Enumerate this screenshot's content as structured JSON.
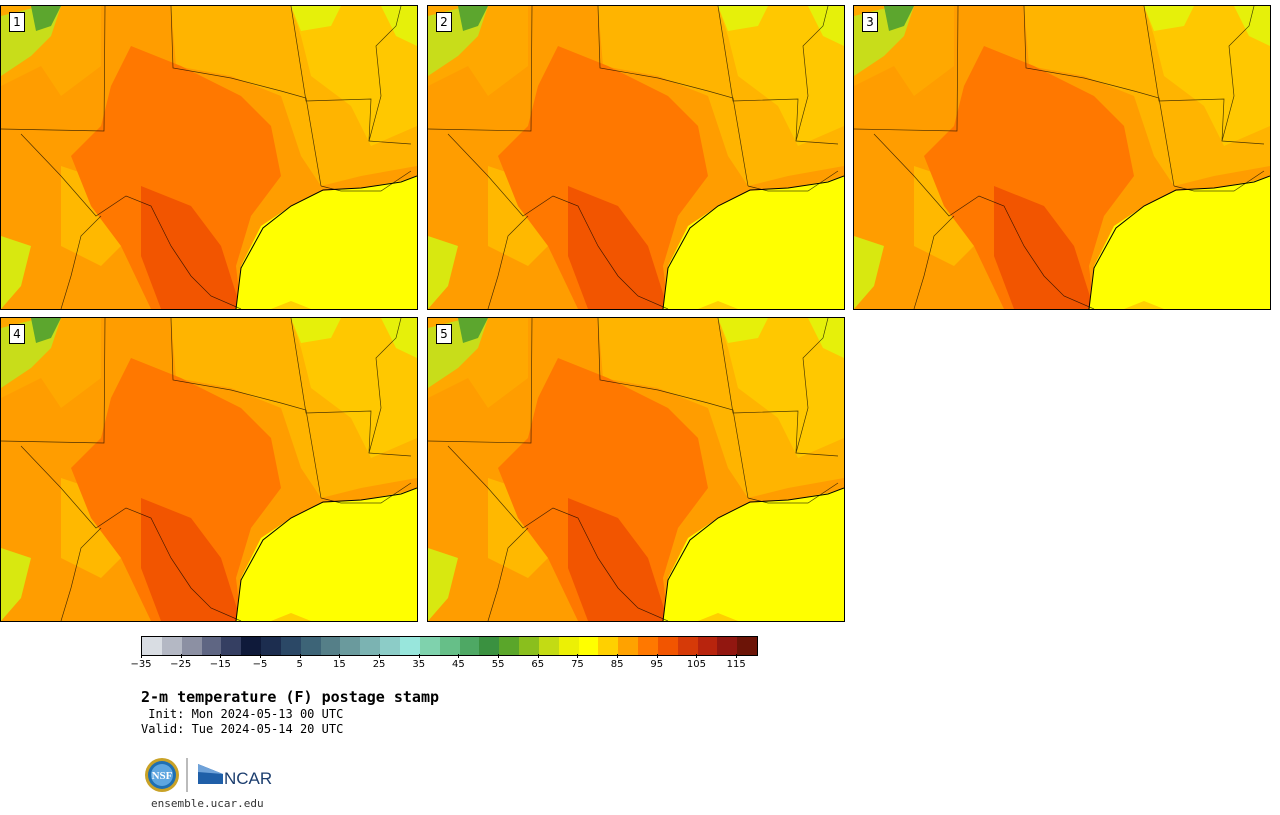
{
  "panels": [
    {
      "label": "1"
    },
    {
      "label": "2"
    },
    {
      "label": "3"
    },
    {
      "label": "4"
    },
    {
      "label": "5"
    }
  ],
  "colorbar": {
    "colors": [
      "#d9dde3",
      "#b4b8c4",
      "#8c90a3",
      "#5f6683",
      "#353f62",
      "#0f1a3a",
      "#1c2d4f",
      "#2b4866",
      "#3d6477",
      "#557f88",
      "#6a9a9d",
      "#7bb3b2",
      "#8cccc7",
      "#98e6dc",
      "#7fd2ad",
      "#66bf88",
      "#4ea864",
      "#3a9140",
      "#5aa62a",
      "#8abf1d",
      "#c3db14",
      "#ecf005",
      "#ffff00",
      "#ffd000",
      "#ffa200",
      "#ff7800",
      "#f25500",
      "#d63a08",
      "#b8240d",
      "#921710",
      "#6c1407"
    ],
    "ticks": [
      "−35",
      "−25",
      "−15",
      "−5",
      "5",
      "15",
      "25",
      "35",
      "45",
      "55",
      "65",
      "75",
      "85",
      "95",
      "105",
      "115"
    ]
  },
  "title": "2-m temperature (F) postage stamp",
  "init_line": " Init: Mon 2024-05-13 00 UTC",
  "valid_line": "Valid: Tue 2024-05-14 20 UTC",
  "logos": {
    "nsf": "NSF",
    "ncar": "NCAR"
  },
  "url": "ensemble.ucar.edu"
}
